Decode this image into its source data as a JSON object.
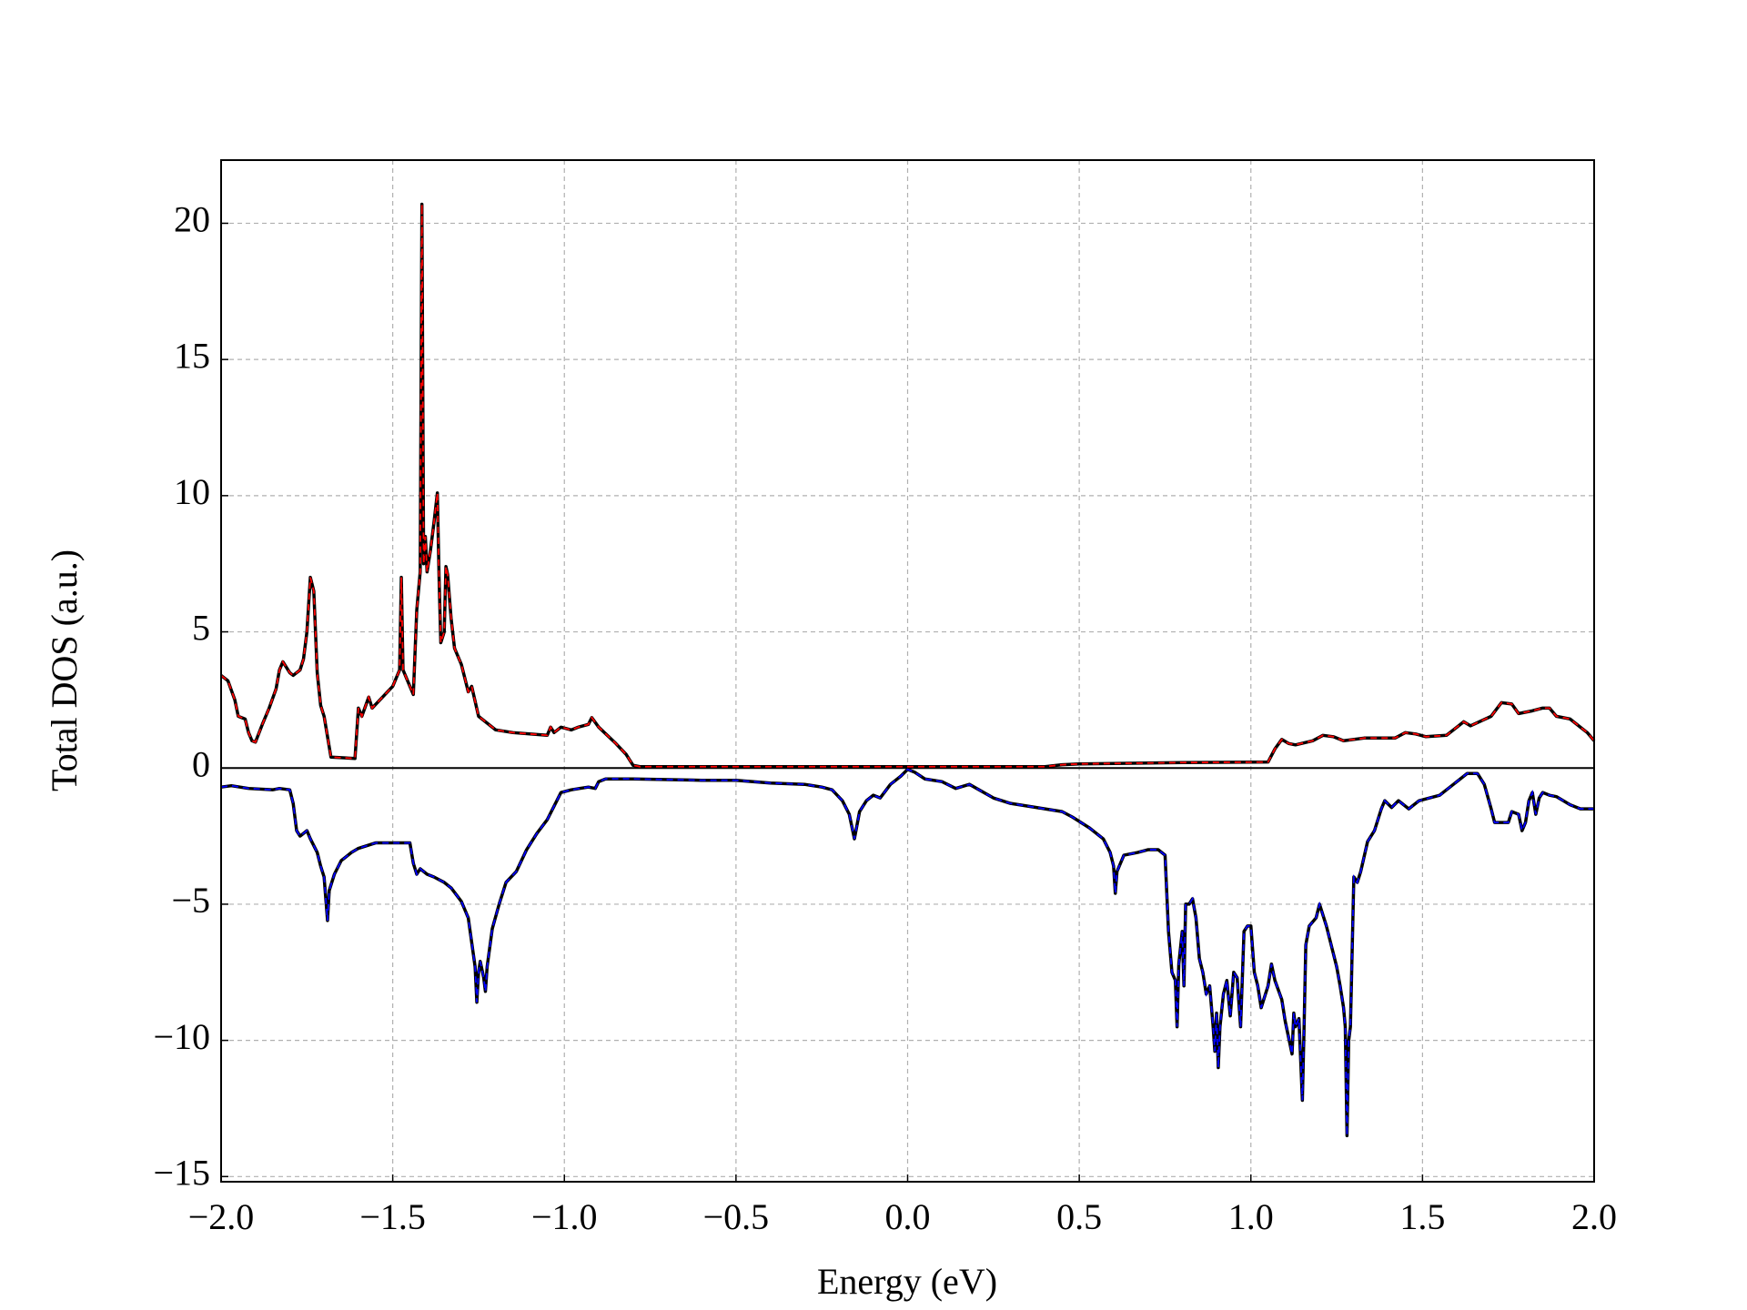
{
  "chart_data": {
    "type": "line",
    "xlabel": "Energy (eV)",
    "ylabel": "Total DOS (a.u.)",
    "xlim": [
      -2.0,
      2.0
    ],
    "ylim": [
      -15.19,
      22.32
    ],
    "xticks": [
      {
        "value": -2.0,
        "label": "−2.0"
      },
      {
        "value": -1.5,
        "label": "−1.5"
      },
      {
        "value": -1.0,
        "label": "−1.0"
      },
      {
        "value": -0.5,
        "label": "−0.5"
      },
      {
        "value": 0,
        "label": "0.0"
      },
      {
        "value": 0.5,
        "label": "0.5"
      },
      {
        "value": 1.0,
        "label": "1.0"
      },
      {
        "value": 1.5,
        "label": "1.5"
      },
      {
        "value": 2.0,
        "label": "2.0"
      }
    ],
    "yticks": [
      {
        "value": -15,
        "label": "−15"
      },
      {
        "value": -10,
        "label": "−10"
      },
      {
        "value": -5,
        "label": "−5"
      },
      0,
      5,
      10,
      15,
      20
    ],
    "grid": true,
    "zero_line": true,
    "line_color": "#000000",
    "linestyle": "dashed",
    "series": [
      {
        "color": "#ff0000",
        "x": [
          -2.0,
          -1.98,
          -1.96,
          -1.95,
          -1.93,
          -1.92,
          -1.91,
          -1.9,
          -1.88,
          -1.86,
          -1.84,
          -1.83,
          -1.82,
          -1.8,
          -1.79,
          -1.77,
          -1.76,
          -1.75,
          -1.74,
          -1.73,
          -1.72,
          -1.71,
          -1.7,
          -1.68,
          -1.61,
          -1.6,
          -1.59,
          -1.57,
          -1.56,
          -1.53,
          -1.5,
          -1.48,
          -1.475,
          -1.47,
          -1.45,
          -1.44,
          -1.43,
          -1.42,
          -1.415,
          -1.41,
          -1.405,
          -1.4,
          -1.39,
          -1.38,
          -1.37,
          -1.365,
          -1.36,
          -1.35,
          -1.345,
          -1.34,
          -1.33,
          -1.32,
          -1.3,
          -1.28,
          -1.27,
          -1.25,
          -1.23,
          -1.2,
          -1.15,
          -1.05,
          -1.04,
          -1.03,
          -1.01,
          -0.98,
          -0.96,
          -0.93,
          -0.92,
          -0.9,
          -0.85,
          -0.82,
          -0.8,
          -0.78,
          0.0,
          0.4,
          0.45,
          0.5,
          0.8,
          1.05,
          1.07,
          1.09,
          1.11,
          1.13,
          1.18,
          1.21,
          1.24,
          1.27,
          1.33,
          1.42,
          1.45,
          1.48,
          1.51,
          1.57,
          1.6,
          1.62,
          1.64,
          1.7,
          1.73,
          1.76,
          1.78,
          1.82,
          1.85,
          1.87,
          1.89,
          1.93,
          1.96,
          1.98,
          2.0
        ],
        "values": [
          3.4,
          3.2,
          2.5,
          1.9,
          1.8,
          1.3,
          1.0,
          0.95,
          1.6,
          2.2,
          2.9,
          3.6,
          3.9,
          3.5,
          3.4,
          3.6,
          4.0,
          5.0,
          7.0,
          6.5,
          3.5,
          2.3,
          1.9,
          0.4,
          0.35,
          2.2,
          1.9,
          2.6,
          2.2,
          2.6,
          3.0,
          3.6,
          7.0,
          3.6,
          3.0,
          2.7,
          5.8,
          7.2,
          20.7,
          7.5,
          8.5,
          7.2,
          8.0,
          9.0,
          10.1,
          7.0,
          4.6,
          5.0,
          7.4,
          7.1,
          5.5,
          4.4,
          3.8,
          2.8,
          3.0,
          1.9,
          1.7,
          1.4,
          1.3,
          1.2,
          1.5,
          1.3,
          1.5,
          1.4,
          1.5,
          1.6,
          1.85,
          1.5,
          0.9,
          0.5,
          0.1,
          0.05,
          0.05,
          0.05,
          0.12,
          0.15,
          0.2,
          0.22,
          0.7,
          1.05,
          0.9,
          0.85,
          1.0,
          1.2,
          1.15,
          1.0,
          1.1,
          1.1,
          1.3,
          1.25,
          1.15,
          1.2,
          1.5,
          1.7,
          1.55,
          1.9,
          2.4,
          2.35,
          2.0,
          2.1,
          2.2,
          2.2,
          1.9,
          1.8,
          1.5,
          1.3,
          1.0
        ]
      },
      {
        "color": "#0000ff",
        "x": [
          -2.0,
          -1.97,
          -1.92,
          -1.85,
          -1.83,
          -1.8,
          -1.79,
          -1.78,
          -1.77,
          -1.75,
          -1.74,
          -1.72,
          -1.71,
          -1.7,
          -1.695,
          -1.69,
          -1.685,
          -1.67,
          -1.65,
          -1.62,
          -1.6,
          -1.55,
          -1.45,
          -1.44,
          -1.43,
          -1.42,
          -1.4,
          -1.38,
          -1.35,
          -1.33,
          -1.3,
          -1.28,
          -1.27,
          -1.26,
          -1.255,
          -1.25,
          -1.245,
          -1.235,
          -1.23,
          -1.225,
          -1.21,
          -1.19,
          -1.17,
          -1.14,
          -1.11,
          -1.08,
          -1.05,
          -1.03,
          -1.01,
          -0.98,
          -0.93,
          -0.91,
          -0.9,
          -0.88,
          -0.8,
          -0.6,
          -0.5,
          -0.4,
          -0.3,
          -0.25,
          -0.22,
          -0.19,
          -0.17,
          -0.155,
          -0.14,
          -0.12,
          -0.1,
          -0.08,
          -0.05,
          -0.02,
          0.0,
          0.02,
          0.05,
          0.1,
          0.14,
          0.18,
          0.25,
          0.3,
          0.35,
          0.4,
          0.45,
          0.48,
          0.53,
          0.57,
          0.59,
          0.6,
          0.605,
          0.61,
          0.63,
          0.67,
          0.7,
          0.73,
          0.75,
          0.76,
          0.77,
          0.78,
          0.785,
          0.79,
          0.8,
          0.805,
          0.81,
          0.82,
          0.83,
          0.84,
          0.85,
          0.86,
          0.87,
          0.88,
          0.89,
          0.895,
          0.9,
          0.905,
          0.91,
          0.92,
          0.93,
          0.94,
          0.95,
          0.96,
          0.97,
          0.98,
          0.99,
          1.0,
          1.01,
          1.02,
          1.03,
          1.05,
          1.06,
          1.07,
          1.09,
          1.1,
          1.12,
          1.125,
          1.13,
          1.14,
          1.15,
          1.155,
          1.16,
          1.17,
          1.19,
          1.2,
          1.22,
          1.24,
          1.25,
          1.26,
          1.27,
          1.275,
          1.28,
          1.285,
          1.29,
          1.3,
          1.31,
          1.32,
          1.34,
          1.36,
          1.38,
          1.39,
          1.41,
          1.43,
          1.46,
          1.49,
          1.52,
          1.55,
          1.58,
          1.61,
          1.63,
          1.66,
          1.68,
          1.7,
          1.71,
          1.75,
          1.76,
          1.78,
          1.79,
          1.8,
          1.81,
          1.82,
          1.83,
          1.84,
          1.85,
          1.87,
          1.89,
          1.93,
          1.96,
          2.0
        ],
        "values": [
          -0.7,
          -0.65,
          -0.75,
          -0.8,
          -0.75,
          -0.8,
          -1.3,
          -2.3,
          -2.5,
          -2.3,
          -2.6,
          -3.1,
          -3.6,
          -4.0,
          -4.8,
          -5.6,
          -4.5,
          -3.9,
          -3.4,
          -3.1,
          -2.95,
          -2.75,
          -2.75,
          -3.5,
          -3.9,
          -3.7,
          -3.9,
          -4.0,
          -4.2,
          -4.4,
          -4.9,
          -5.5,
          -6.4,
          -7.3,
          -8.6,
          -7.5,
          -7.1,
          -7.7,
          -8.2,
          -7.3,
          -5.9,
          -5.0,
          -4.2,
          -3.8,
          -3.0,
          -2.4,
          -1.9,
          -1.4,
          -0.9,
          -0.8,
          -0.7,
          -0.75,
          -0.5,
          -0.4,
          -0.4,
          -0.45,
          -0.45,
          -0.55,
          -0.6,
          -0.7,
          -0.8,
          -1.2,
          -1.7,
          -2.6,
          -1.6,
          -1.2,
          -1.0,
          -1.1,
          -0.6,
          -0.3,
          -0.05,
          -0.15,
          -0.4,
          -0.5,
          -0.75,
          -0.6,
          -1.1,
          -1.3,
          -1.4,
          -1.5,
          -1.6,
          -1.8,
          -2.2,
          -2.6,
          -3.1,
          -3.6,
          -4.6,
          -3.8,
          -3.2,
          -3.1,
          -3.0,
          -3.0,
          -3.2,
          -6.0,
          -7.5,
          -7.8,
          -9.5,
          -7.2,
          -6.0,
          -8.0,
          -5.0,
          -5.0,
          -4.8,
          -5.5,
          -7.0,
          -7.5,
          -8.3,
          -8.0,
          -9.5,
          -10.4,
          -9.0,
          -11.0,
          -9.5,
          -8.3,
          -7.8,
          -9.1,
          -7.5,
          -7.7,
          -9.5,
          -6.0,
          -5.8,
          -5.8,
          -7.5,
          -8.0,
          -8.8,
          -8.0,
          -7.2,
          -7.8,
          -8.5,
          -9.3,
          -10.5,
          -9.0,
          -9.5,
          -9.2,
          -12.2,
          -9.5,
          -6.5,
          -5.8,
          -5.5,
          -5.0,
          -5.8,
          -6.8,
          -7.3,
          -8.0,
          -8.8,
          -9.5,
          -13.5,
          -10.0,
          -9.5,
          -4.0,
          -4.2,
          -3.8,
          -2.7,
          -2.3,
          -1.5,
          -1.2,
          -1.45,
          -1.2,
          -1.5,
          -1.2,
          -1.1,
          -1.0,
          -0.7,
          -0.4,
          -0.2,
          -0.2,
          -0.6,
          -1.5,
          -2.0,
          -2.0,
          -1.6,
          -1.7,
          -2.3,
          -2.0,
          -1.2,
          -0.9,
          -1.7,
          -1.1,
          -0.9,
          -1.0,
          -1.05,
          -1.35,
          -1.5,
          -1.5
        ]
      }
    ]
  }
}
